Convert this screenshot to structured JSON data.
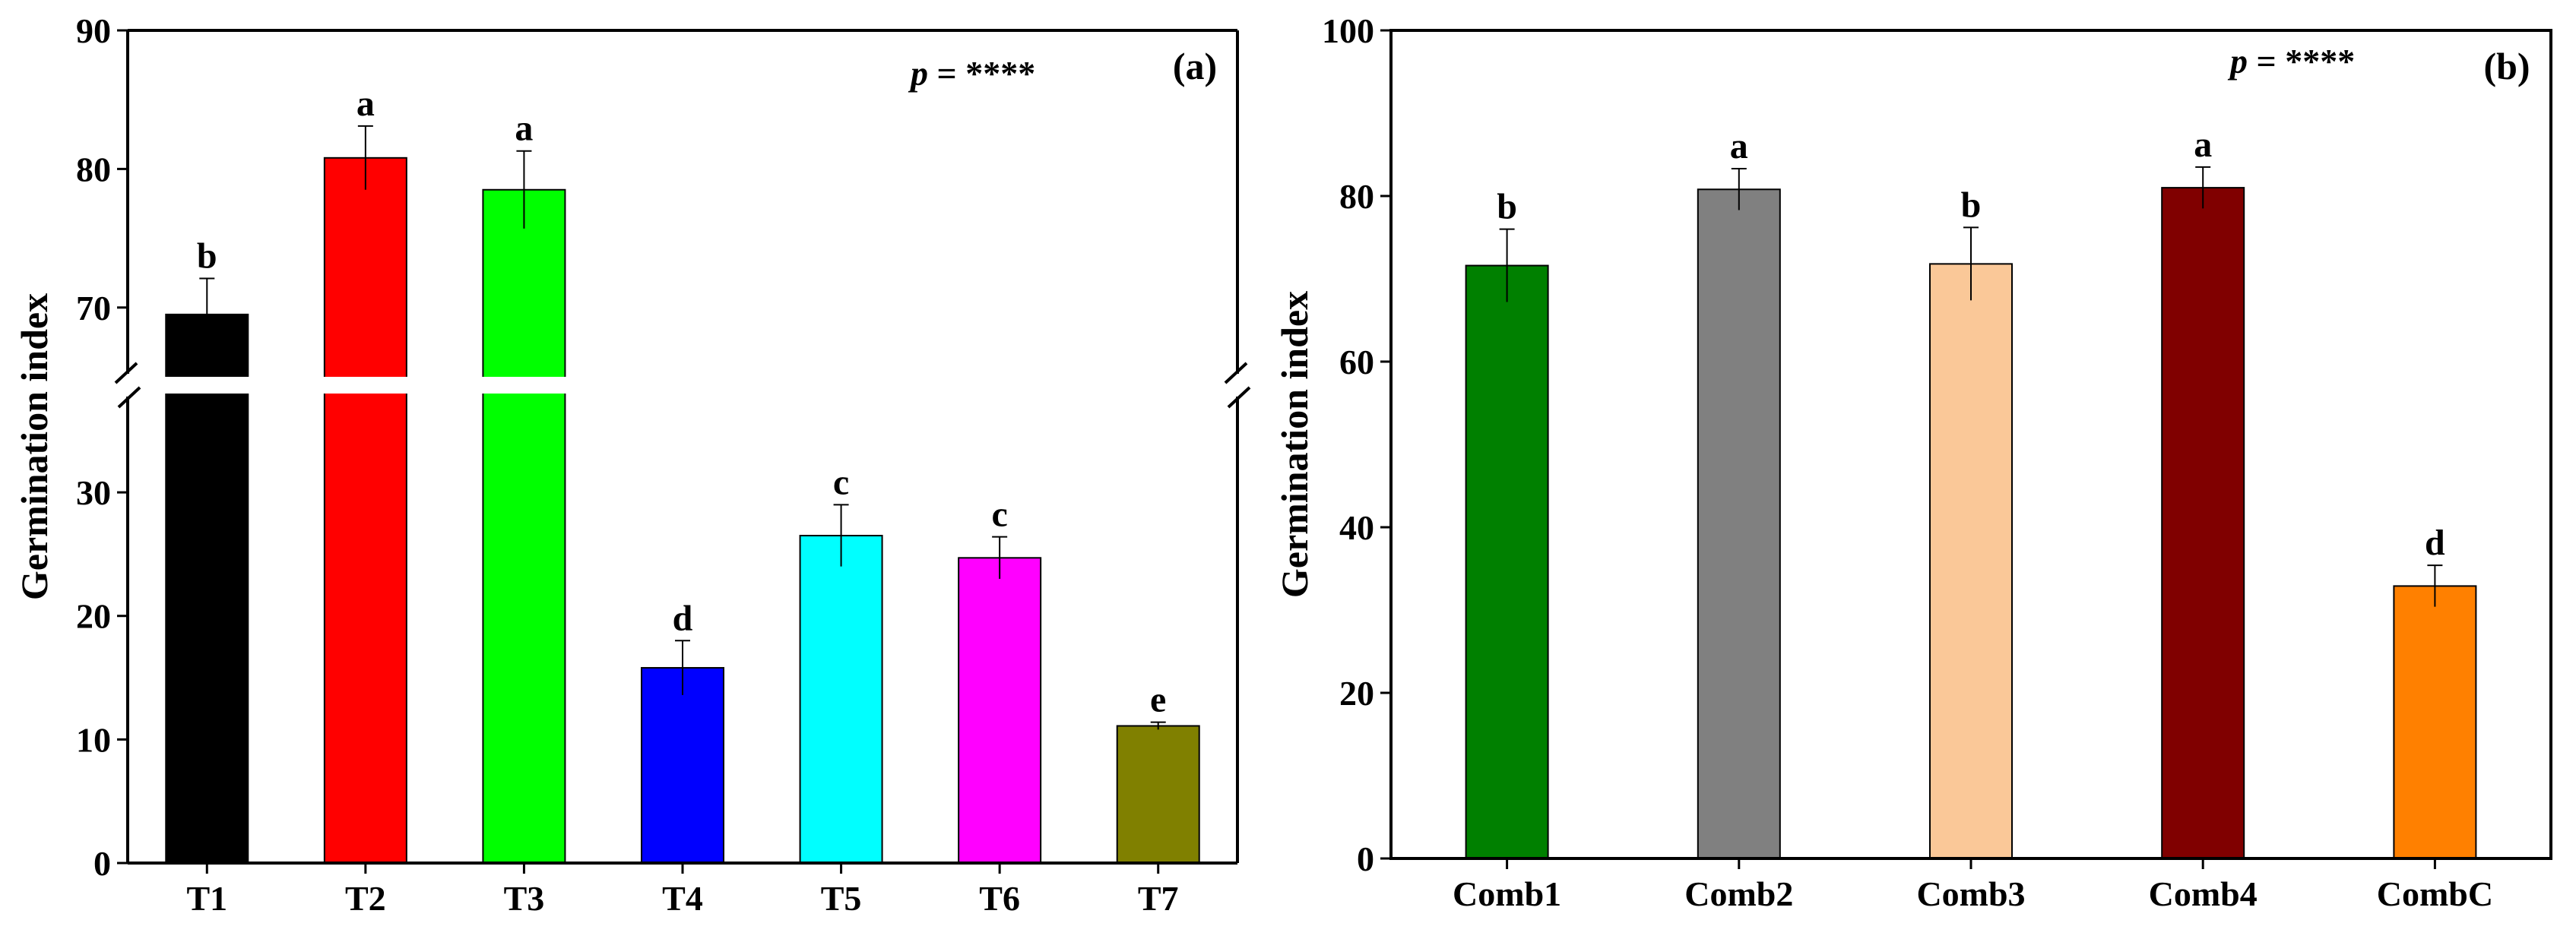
{
  "figure": {
    "panels": [
      {
        "id": "a",
        "panel_label": "(a)",
        "p_prefix": "p",
        "p_rest": " = ****"
      },
      {
        "id": "b",
        "panel_label": "(b)",
        "p_prefix": "p",
        "p_rest": " = ****"
      }
    ]
  },
  "chart_data": [
    {
      "type": "bar",
      "title": "",
      "xlabel": "",
      "ylabel": "Germination index",
      "axis_break": {
        "lower": [
          0,
          38
        ],
        "upper": [
          65,
          90
        ]
      },
      "yticks_lower": [
        0,
        10,
        20,
        30
      ],
      "yticks_upper": [
        70,
        80,
        90
      ],
      "categories": [
        "T1",
        "T2",
        "T3",
        "T4",
        "T5",
        "T6",
        "T7"
      ],
      "values": [
        69.5,
        80.8,
        78.5,
        15.8,
        26.5,
        24.7,
        11.1
      ],
      "errors": [
        2.6,
        2.3,
        2.8,
        2.2,
        2.5,
        1.7,
        0.3
      ],
      "letters": [
        "b",
        "a",
        "a",
        "d",
        "c",
        "c",
        "e"
      ],
      "colors": [
        "#000000",
        "#ff0000",
        "#00ff00",
        "#0000ff",
        "#00ffff",
        "#ff00ff",
        "#808000"
      ],
      "grid": false,
      "legend": "none"
    },
    {
      "type": "bar",
      "title": "",
      "xlabel": "",
      "ylabel": "Germination index",
      "ylim": [
        0,
        100
      ],
      "yticks": [
        0,
        20,
        40,
        60,
        80,
        100
      ],
      "categories": [
        "Comb1",
        "Comb2",
        "Comb3",
        "Comb4",
        "CombC"
      ],
      "values": [
        71.6,
        80.8,
        71.8,
        81.0,
        32.9
      ],
      "errors": [
        4.4,
        2.5,
        4.4,
        2.5,
        2.5
      ],
      "letters": [
        "b",
        "a",
        "b",
        "a",
        "d"
      ],
      "colors": [
        "#008000",
        "#808080",
        "#fac898",
        "#800000",
        "#ff8000"
      ],
      "grid": false,
      "legend": "none"
    }
  ]
}
